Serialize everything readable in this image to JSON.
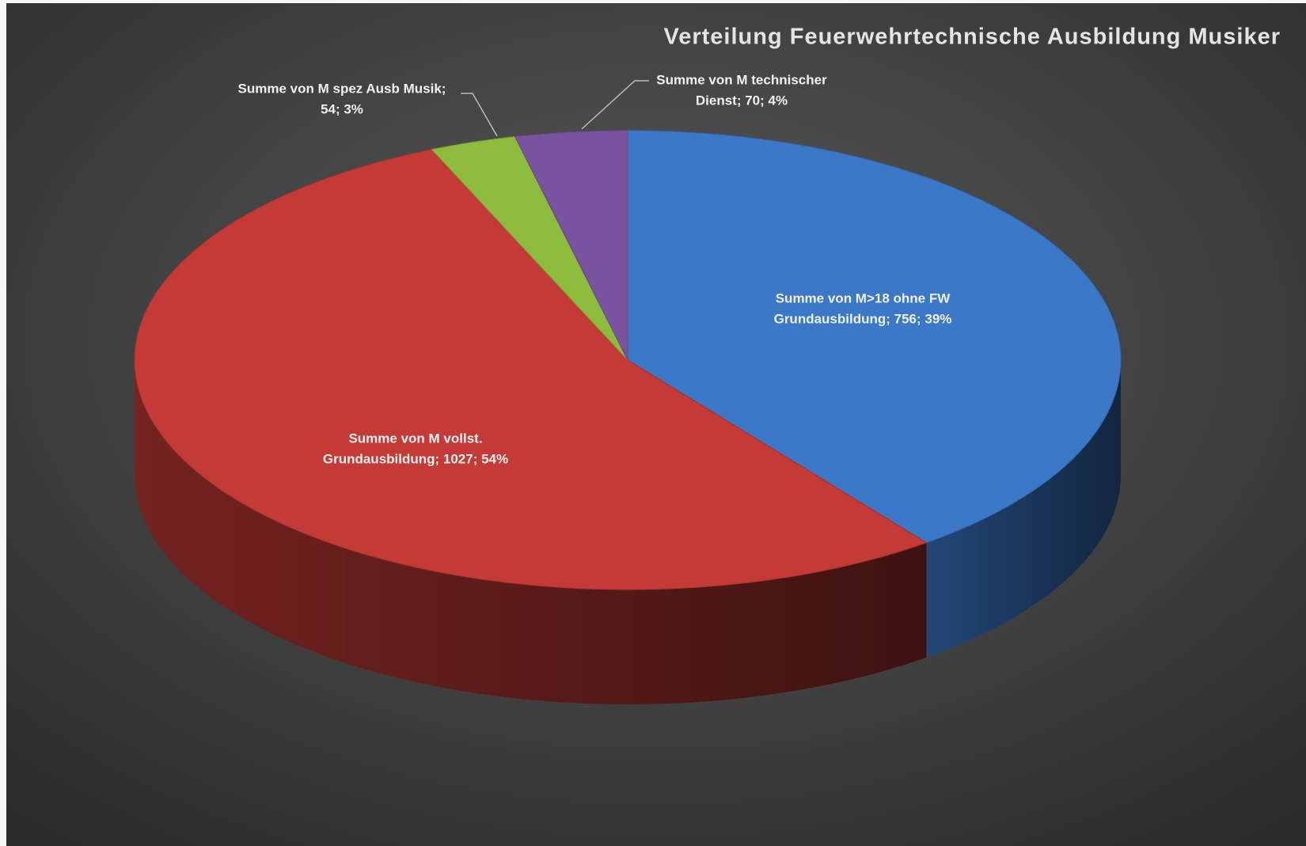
{
  "chart_data": {
    "type": "pie3d",
    "title": "Verteilung Feuerwehrtechnische Ausbildung Musiker",
    "values": [
      756,
      1027,
      54,
      70
    ],
    "value_labels": [
      [
        "Summe von M>18 ohne FW",
        "Grundausbildung;  756; 39%"
      ],
      [
        "Summe von M vollst.",
        "Grundausbildung;  1027; 54%"
      ],
      [
        "Summe von M spez Ausb Musik;",
        "54; 3%"
      ],
      [
        "Summe von M technischer",
        "Dienst;  70; 4%"
      ]
    ],
    "colors": [
      "#3b78c8",
      "#c33a36",
      "#8dbb3d",
      "#7952a0"
    ]
  }
}
